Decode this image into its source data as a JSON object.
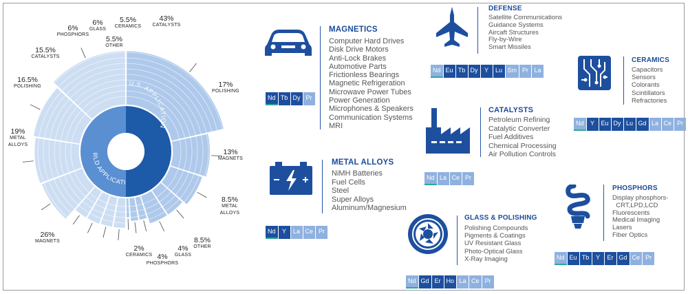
{
  "donut": {
    "world_label": "WORLD APPLICATION",
    "us_label": "U.S. APPLICATION",
    "colors": {
      "dark": "#1d5aa8",
      "mid": "#5a8fd1",
      "light": "#a8c5ea",
      "lighter": "#c9dcf3"
    }
  },
  "chart_data": {
    "type": "pie",
    "series": [
      {
        "name": "U.S. APPLICATION",
        "categories": [
          "CATALYSTS",
          "POLISHING",
          "MAGNETS",
          "METAL ALLOYS",
          "OTHER",
          "GLASS",
          "PHOSPHORS",
          "CERAMICS"
        ],
        "values": [
          43,
          17,
          13,
          8.5,
          8.5,
          4,
          4,
          2
        ],
        "labels": [
          "43%",
          "17%",
          "13%",
          "8.5%",
          "8.5%",
          "4%",
          "4%",
          "2%"
        ]
      },
      {
        "name": "WORLD APPLICATION",
        "categories": [
          "MAGNETS",
          "METAL ALLOYS",
          "POLISHING",
          "CATALYSTS",
          "PHOSPHORS",
          "GLASS",
          "OTHER",
          "CERAMICS"
        ],
        "values": [
          26,
          19,
          16.5,
          15.5,
          6,
          6,
          5.5,
          5.5
        ],
        "labels": [
          "26%",
          "19%",
          "16.5%",
          "15.5%",
          "6%",
          "6%",
          "5.5%",
          "5.5%"
        ]
      }
    ]
  },
  "magnetics": {
    "title": "MAGNETICS",
    "items": [
      "Computer Hard Drives",
      "Disk Drive Motors",
      "Anti-Lock Brakes",
      "Automotive Parts",
      "Frictionless Bearings",
      "Magnetic Refrigeration",
      "Microwave Power Tubes",
      "Power Generation",
      "Microphones & Speakers",
      "Communication Systems",
      "MRI"
    ],
    "elements": [
      {
        "s": "Nd",
        "t": "d"
      },
      {
        "s": "Tb",
        "t": "d"
      },
      {
        "s": "Dy",
        "t": "d"
      },
      {
        "s": "Pr",
        "t": "l"
      }
    ]
  },
  "metal_alloys": {
    "title": "METAL ALLOYS",
    "items": [
      "NiMH Batteries",
      "Fuel Cells",
      "Steel",
      "Super Alloys",
      "Aluminum/Magnesium"
    ],
    "elements": [
      {
        "s": "Nd",
        "t": "d"
      },
      {
        "s": "Y",
        "t": "d"
      },
      {
        "s": "La",
        "t": "l"
      },
      {
        "s": "Ce",
        "t": "l"
      },
      {
        "s": "Pr",
        "t": "l"
      }
    ]
  },
  "defense": {
    "title": "DEFENSE",
    "items": [
      "Satellite Communications",
      "Guidance Systems",
      "Aircaft Structures",
      "Fly-by-Wire",
      "Smart Missiles"
    ],
    "elements": [
      {
        "s": "Nd",
        "t": "l"
      },
      {
        "s": "Eu",
        "t": "d"
      },
      {
        "s": "Tb",
        "t": "d"
      },
      {
        "s": "Dy",
        "t": "d"
      },
      {
        "s": "Y",
        "t": "d"
      },
      {
        "s": "Lu",
        "t": "d"
      },
      {
        "s": "Sm",
        "t": "l"
      },
      {
        "s": "Pr",
        "t": "l"
      },
      {
        "s": "La",
        "t": "l"
      }
    ]
  },
  "catalysts": {
    "title": "CATALYSTS",
    "items": [
      "Petroleum Refining",
      "Catalytic Converter",
      "Fuel Additives",
      "Chemical Processing",
      "Air Pollution Controls"
    ],
    "elements": [
      {
        "s": "Nd",
        "t": "l"
      },
      {
        "s": "La",
        "t": "l"
      },
      {
        "s": "Ce",
        "t": "l"
      },
      {
        "s": "Pr",
        "t": "l"
      }
    ]
  },
  "glass": {
    "title": "GLASS & POLISHING",
    "items": [
      "Polishing Compounds",
      "Pigments & Coatings",
      "UV Resistant Glass",
      "Photo-Optical Glass",
      "X-Ray Imaging"
    ],
    "elements": [
      {
        "s": "Nd",
        "t": "l"
      },
      {
        "s": "Gd",
        "t": "d"
      },
      {
        "s": "Er",
        "t": "d"
      },
      {
        "s": "Ho",
        "t": "d"
      },
      {
        "s": "La",
        "t": "l"
      },
      {
        "s": "Ce",
        "t": "l"
      },
      {
        "s": "Pr",
        "t": "l"
      }
    ]
  },
  "ceramics": {
    "title": "CERAMICS",
    "items": [
      "Capacitors",
      "Sensors",
      "Colorants",
      "Scintillators",
      "Refractories"
    ],
    "elements": [
      {
        "s": "Nd",
        "t": "l"
      },
      {
        "s": "Y",
        "t": "d"
      },
      {
        "s": "Eu",
        "t": "d"
      },
      {
        "s": "Dy",
        "t": "d"
      },
      {
        "s": "Lu",
        "t": "d"
      },
      {
        "s": "Gd",
        "t": "d"
      },
      {
        "s": "La",
        "t": "l"
      },
      {
        "s": "Ce",
        "t": "l"
      },
      {
        "s": "Pr",
        "t": "l"
      }
    ]
  },
  "phosphors": {
    "title": "PHOSPHORS",
    "items": [
      "Display phosphors-",
      "  CRT,LPD,LCD",
      "Fluorescents",
      "Medical Imaging",
      "Lasers",
      "Fiber Optics"
    ],
    "elements": [
      {
        "s": "Nd",
        "t": "l"
      },
      {
        "s": "Eu",
        "t": "d"
      },
      {
        "s": "Tb",
        "t": "d"
      },
      {
        "s": "Y",
        "t": "d"
      },
      {
        "s": "Er",
        "t": "d"
      },
      {
        "s": "Gd",
        "t": "d"
      },
      {
        "s": "Ce",
        "t": "l"
      },
      {
        "s": "Pr",
        "t": "l"
      }
    ]
  }
}
